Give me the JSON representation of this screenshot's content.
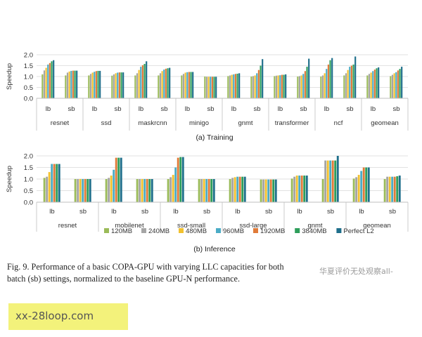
{
  "figure": {
    "caption_line1": "Fig. 9.  Performance of a basic COPA-GPU with varying LLC capacities for both",
    "caption_line2": "batch (sb) settings, normalized to the baseline GPU-N performance.",
    "watermark": "华夏评价无处观察all-",
    "url_banner": "xx-28loop.com"
  },
  "colors": {
    "120MB": "#9bbb59",
    "240MB": "#a5a5a5",
    "480MB": "#f2c12e",
    "960MB": "#4bacc6",
    "1920MB": "#e07b39",
    "3840MB": "#2e9e5b",
    "Perfect L2": "#1f6f8b"
  },
  "chart_data": [
    {
      "type": "bar",
      "subtitle": "(a)  Training",
      "ylabel": "Speedup",
      "ylim": [
        0,
        2
      ],
      "yticks": [
        "0.0",
        "0.5",
        "1.0",
        "1.5",
        "2.0"
      ],
      "grid": true,
      "models": [
        "resnet",
        "ssd",
        "maskrcnn",
        "minigo",
        "gnmt",
        "transformer",
        "ncf",
        "geomean"
      ],
      "groups": [
        {
          "model": "resnet",
          "setting": "lb",
          "values": [
            1.1,
            1.28,
            1.4,
            1.55,
            1.62,
            1.7,
            1.75
          ]
        },
        {
          "model": "resnet",
          "setting": "sb",
          "values": [
            1.05,
            1.18,
            1.23,
            1.26,
            1.27,
            1.27,
            1.27
          ]
        },
        {
          "model": "ssd",
          "setting": "lb",
          "values": [
            1.05,
            1.12,
            1.18,
            1.22,
            1.25,
            1.26,
            1.26
          ]
        },
        {
          "model": "ssd",
          "setting": "sb",
          "values": [
            1.04,
            1.1,
            1.15,
            1.18,
            1.19,
            1.19,
            1.19
          ]
        },
        {
          "model": "maskrcnn",
          "setting": "lb",
          "values": [
            1.05,
            1.15,
            1.3,
            1.45,
            1.52,
            1.58,
            1.7
          ]
        },
        {
          "model": "maskrcnn",
          "setting": "sb",
          "values": [
            1.05,
            1.15,
            1.25,
            1.32,
            1.36,
            1.38,
            1.4
          ]
        },
        {
          "model": "minigo",
          "setting": "lb",
          "values": [
            1.05,
            1.12,
            1.18,
            1.2,
            1.21,
            1.21,
            1.21
          ]
        },
        {
          "model": "minigo",
          "setting": "sb",
          "values": [
            1.0,
            0.99,
            0.99,
            0.99,
            0.99,
            0.99,
            0.99
          ]
        },
        {
          "model": "gnmt",
          "setting": "lb",
          "values": [
            1.02,
            1.05,
            1.08,
            1.1,
            1.12,
            1.13,
            1.15
          ]
        },
        {
          "model": "gnmt",
          "setting": "sb",
          "values": [
            1.0,
            1.02,
            1.05,
            1.15,
            1.3,
            1.5,
            1.8
          ]
        },
        {
          "model": "transformer",
          "setting": "lb",
          "values": [
            1.02,
            1.04,
            1.05,
            1.06,
            1.08,
            1.08,
            1.1
          ]
        },
        {
          "model": "transformer",
          "setting": "sb",
          "values": [
            1.0,
            1.02,
            1.05,
            1.12,
            1.25,
            1.45,
            1.82
          ]
        },
        {
          "model": "ncf",
          "setting": "lb",
          "values": [
            1.0,
            1.05,
            1.15,
            1.35,
            1.55,
            1.75,
            1.85
          ]
        },
        {
          "model": "ncf",
          "setting": "sb",
          "values": [
            1.05,
            1.15,
            1.3,
            1.45,
            1.5,
            1.55,
            1.92
          ]
        },
        {
          "model": "geomean",
          "setting": "lb",
          "values": [
            1.05,
            1.12,
            1.18,
            1.25,
            1.32,
            1.38,
            1.42
          ]
        },
        {
          "model": "geomean",
          "setting": "sb",
          "values": [
            1.02,
            1.08,
            1.15,
            1.2,
            1.28,
            1.35,
            1.45
          ]
        }
      ]
    },
    {
      "type": "bar",
      "subtitle": "(b)  Inference",
      "ylabel": "Speedup",
      "ylim": [
        0,
        2
      ],
      "yticks": [
        "0.0",
        "0.5",
        "1.0",
        "1.5",
        "2.0"
      ],
      "grid": true,
      "models": [
        "resnet",
        "mobilenet",
        "ssd-small",
        "ssd-large",
        "gnmt",
        "geomean"
      ],
      "legend_position": "bottom",
      "series_names": [
        "120MB",
        "240MB",
        "480MB",
        "960MB",
        "1920MB",
        "3840MB",
        "Perfect L2"
      ],
      "groups": [
        {
          "model": "resnet",
          "setting": "lb",
          "values": [
            1.05,
            1.1,
            1.3,
            1.65,
            1.65,
            1.65,
            1.65
          ]
        },
        {
          "model": "resnet",
          "setting": "sb",
          "values": [
            1.0,
            1.0,
            1.0,
            1.0,
            1.0,
            1.0,
            1.0
          ]
        },
        {
          "model": "mobilenet",
          "setting": "lb",
          "values": [
            1.0,
            1.05,
            1.15,
            1.4,
            1.92,
            1.92,
            1.92
          ]
        },
        {
          "model": "mobilenet",
          "setting": "sb",
          "values": [
            1.0,
            1.0,
            1.0,
            1.0,
            1.0,
            1.0,
            1.0
          ]
        },
        {
          "model": "ssd-small",
          "setting": "lb",
          "values": [
            1.0,
            1.08,
            1.18,
            1.5,
            1.92,
            1.95,
            1.95
          ]
        },
        {
          "model": "ssd-small",
          "setting": "sb",
          "values": [
            1.0,
            1.0,
            1.0,
            1.0,
            1.0,
            1.0,
            1.0
          ]
        },
        {
          "model": "ssd-large",
          "setting": "lb",
          "values": [
            1.0,
            1.05,
            1.08,
            1.1,
            1.1,
            1.1,
            1.1
          ]
        },
        {
          "model": "ssd-large",
          "setting": "sb",
          "values": [
            0.98,
            0.98,
            0.98,
            0.98,
            0.98,
            0.98,
            0.98
          ]
        },
        {
          "model": "gnmt",
          "setting": "lb",
          "values": [
            1.02,
            1.1,
            1.15,
            1.15,
            1.15,
            1.15,
            1.15
          ]
        },
        {
          "model": "gnmt",
          "setting": "sb",
          "values": [
            1.0,
            1.8,
            1.8,
            1.8,
            1.8,
            1.8,
            2.0
          ]
        },
        {
          "model": "geomean",
          "setting": "lb",
          "values": [
            1.02,
            1.08,
            1.18,
            1.35,
            1.5,
            1.5,
            1.5
          ]
        },
        {
          "model": "geomean",
          "setting": "sb",
          "values": [
            1.0,
            1.1,
            1.1,
            1.1,
            1.1,
            1.12,
            1.15
          ]
        }
      ]
    }
  ]
}
